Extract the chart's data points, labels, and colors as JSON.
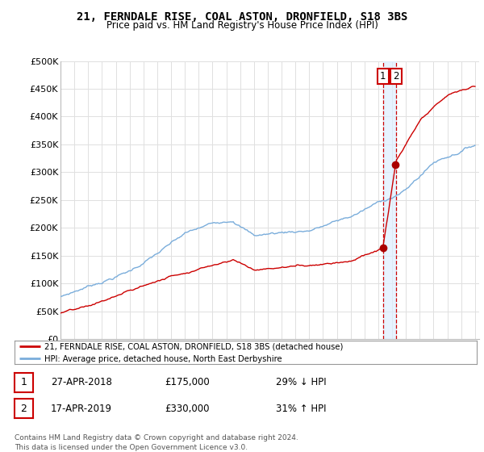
{
  "title": "21, FERNDALE RISE, COAL ASTON, DRONFIELD, S18 3BS",
  "subtitle": "Price paid vs. HM Land Registry's House Price Index (HPI)",
  "legend_line1": "21, FERNDALE RISE, COAL ASTON, DRONFIELD, S18 3BS (detached house)",
  "legend_line2": "HPI: Average price, detached house, North East Derbyshire",
  "transaction1_num": "1",
  "transaction1_date": "27-APR-2018",
  "transaction1_price": "£175,000",
  "transaction1_hpi": "29% ↓ HPI",
  "transaction2_num": "2",
  "transaction2_date": "17-APR-2019",
  "transaction2_price": "£330,000",
  "transaction2_hpi": "31% ↑ HPI",
  "footer": "Contains HM Land Registry data © Crown copyright and database right 2024.\nThis data is licensed under the Open Government Licence v3.0.",
  "house_color": "#cc0000",
  "hpi_color": "#7aaddb",
  "marker_color": "#aa0000",
  "vline_color": "#cc0000",
  "shade_color": "#ddeeff",
  "background_color": "#ffffff",
  "grid_color": "#e0e0e0",
  "ylim": [
    0,
    500000
  ],
  "yticks": [
    0,
    50000,
    100000,
    150000,
    200000,
    250000,
    300000,
    350000,
    400000,
    450000,
    500000
  ],
  "xstart_year": 1995,
  "xend_year": 2025,
  "transaction1_year": 2018.33,
  "transaction2_year": 2019.29,
  "transaction1_price_val": 175000,
  "transaction2_price_val": 330000
}
